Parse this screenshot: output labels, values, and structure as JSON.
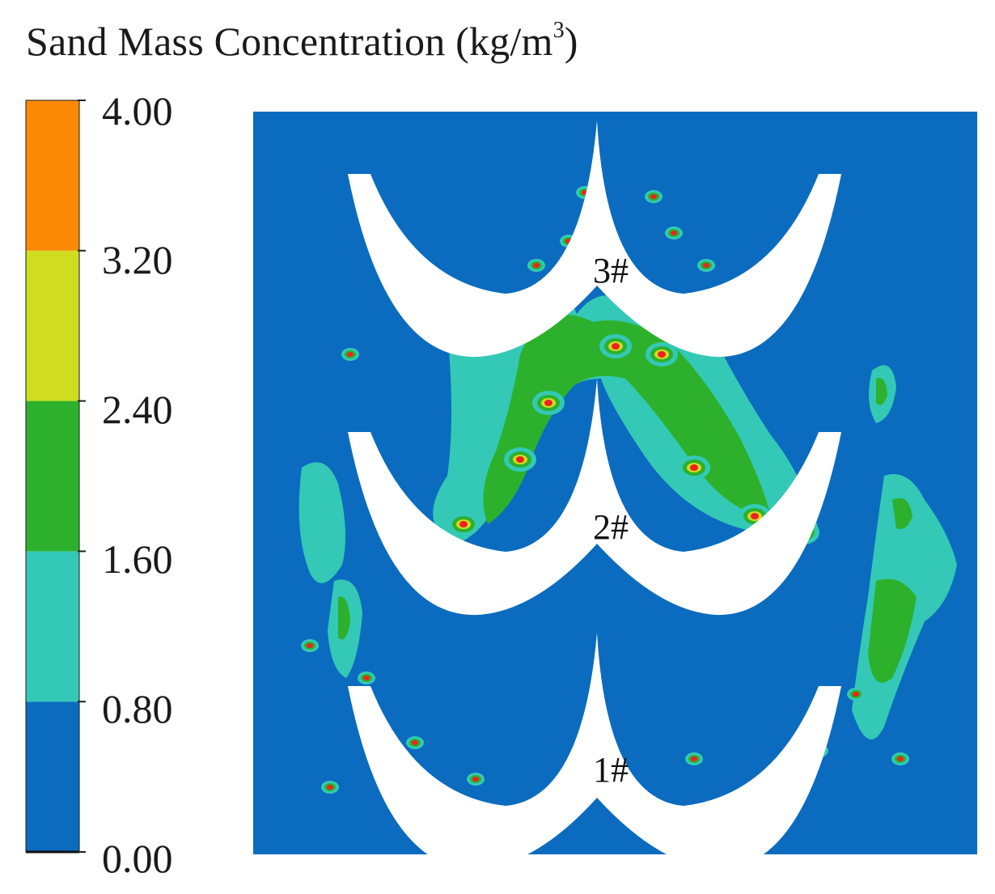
{
  "chart_data": {
    "type": "heatmap",
    "title": "Sand Mass Concentration (kg/m",
    "title_superscript": "3",
    "title_close": ")",
    "units": "kg/m3",
    "colorbar": {
      "range": [
        0.0,
        4.0
      ],
      "ticks": [
        "4.00",
        "3.20",
        "2.40",
        "1.60",
        "0.80",
        "0.00"
      ],
      "bands": [
        {
          "from": 0.0,
          "to": 0.8,
          "color": "#0b6cbf"
        },
        {
          "from": 0.8,
          "to": 1.6,
          "color": "#33c9b6"
        },
        {
          "from": 1.6,
          "to": 2.4,
          "color": "#2db12d"
        },
        {
          "from": 2.4,
          "to": 3.2,
          "color": "#cfdc1f"
        },
        {
          "from": 3.2,
          "to": 4.0,
          "color": "#fb8a06"
        }
      ],
      "peak_color": "#ee2222"
    },
    "blades": [
      {
        "label": "3#",
        "relative_concentration": "low"
      },
      {
        "label": "2#",
        "relative_concentration": "high"
      },
      {
        "label": "1#",
        "relative_concentration": "low"
      }
    ],
    "background_color": "#0b6cbf"
  }
}
